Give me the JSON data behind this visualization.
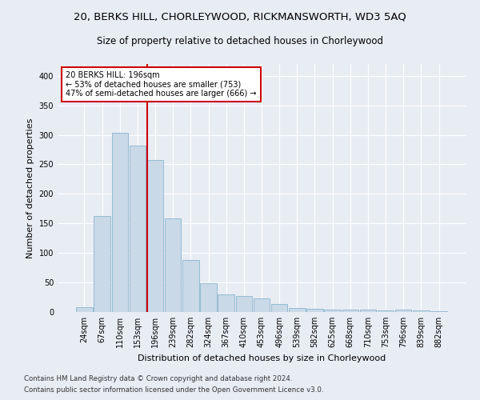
{
  "title1": "20, BERKS HILL, CHORLEYWOOD, RICKMANSWORTH, WD3 5AQ",
  "title2": "Size of property relative to detached houses in Chorleywood",
  "xlabel": "Distribution of detached houses by size in Chorleywood",
  "ylabel": "Number of detached properties",
  "categories": [
    "24sqm",
    "67sqm",
    "110sqm",
    "153sqm",
    "196sqm",
    "239sqm",
    "282sqm",
    "324sqm",
    "367sqm",
    "410sqm",
    "453sqm",
    "496sqm",
    "539sqm",
    "582sqm",
    "625sqm",
    "668sqm",
    "710sqm",
    "753sqm",
    "796sqm",
    "839sqm",
    "882sqm"
  ],
  "values": [
    8,
    163,
    303,
    282,
    258,
    158,
    88,
    49,
    30,
    27,
    23,
    14,
    7,
    5,
    4,
    4,
    4,
    3,
    4,
    3,
    2
  ],
  "bar_color": "#c9d9e8",
  "bar_edge_color": "#8ab4cc",
  "vline_index": 4,
  "vline_color": "#cc0000",
  "annotation_text": "20 BERKS HILL: 196sqm\n← 53% of detached houses are smaller (753)\n47% of semi-detached houses are larger (666) →",
  "annotation_box_color": "#ffffff",
  "annotation_box_edge": "#cc0000",
  "footer1": "Contains HM Land Registry data © Crown copyright and database right 2024.",
  "footer2": "Contains public sector information licensed under the Open Government Licence v3.0.",
  "ylim": [
    0,
    420
  ],
  "background_color": "#e8edf4",
  "plot_background": "#e8edf4",
  "grid_color": "#ffffff",
  "title_fontsize": 9.5,
  "subtitle_fontsize": 8.5,
  "axis_label_fontsize": 8,
  "tick_fontsize": 7,
  "ylabel_fontsize": 8
}
